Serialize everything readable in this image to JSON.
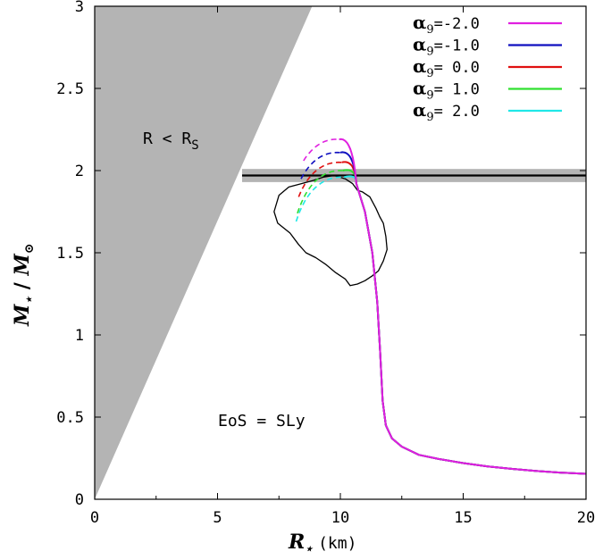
{
  "chart_data": {
    "type": "line",
    "xlabel": "R",
    "xlabel_sub": "⋆",
    "xlabel_unit": "(km)",
    "ylabel": "M",
    "ylabel_sub": "⋆",
    "ylabel_den": "M",
    "ylabel_den_sub": "⊙",
    "xlim": [
      0,
      20
    ],
    "ylim": [
      0,
      3
    ],
    "xticks": [
      "0",
      "5",
      "10",
      "15",
      "20"
    ],
    "yticks": [
      "0",
      "0.5",
      "1",
      "1.5",
      "2",
      "2.5",
      "3"
    ],
    "grid": false,
    "legend_position": "top-right",
    "annotation_region": {
      "label": "R  <  R",
      "label_sub": "S",
      "slope_solar_mass_per_km": 0.339
    },
    "annotation_eos": "EoS = SLy",
    "horizontal_band": {
      "value": 1.97,
      "half_width": 0.04,
      "x_start": 6.0,
      "x_end": 20
    },
    "series": [
      {
        "name": "α",
        "name_sub": "9",
        "value_text": "=-2.0",
        "color": "#e020e0",
        "peak_x": 9.95,
        "peak_y": 2.19,
        "start_x": 8.5,
        "start_y": 2.06
      },
      {
        "name": "α",
        "name_sub": "9",
        "value_text": "=-1.0",
        "color": "#1010c0",
        "peak_x": 10.0,
        "peak_y": 2.11,
        "start_x": 8.4,
        "start_y": 1.95
      },
      {
        "name": "α",
        "name_sub": "9",
        "value_text": "= 0.0",
        "color": "#e01010",
        "peak_x": 10.05,
        "peak_y": 2.05,
        "start_x": 8.3,
        "start_y": 1.84
      },
      {
        "name": "α",
        "name_sub": "9",
        "value_text": "= 1.0",
        "color": "#30e030",
        "peak_x": 10.1,
        "peak_y": 2.0,
        "start_x": 8.25,
        "start_y": 1.74
      },
      {
        "name": "α",
        "name_sub": "9",
        "value_text": "= 2.0",
        "color": "#20e8e8",
        "peak_x": 10.15,
        "peak_y": 1.96,
        "start_x": 8.2,
        "start_y": 1.69
      }
    ],
    "common_branch": [
      [
        10.6,
        1.9
      ],
      [
        11.0,
        1.75
      ],
      [
        11.3,
        1.5
      ],
      [
        11.5,
        1.2
      ],
      [
        11.62,
        0.9
      ],
      [
        11.72,
        0.6
      ],
      [
        11.85,
        0.45
      ],
      [
        12.1,
        0.37
      ],
      [
        12.5,
        0.32
      ],
      [
        13.2,
        0.27
      ],
      [
        14.0,
        0.245
      ],
      [
        15.0,
        0.22
      ],
      [
        16.0,
        0.2
      ],
      [
        17.0,
        0.185
      ],
      [
        18.0,
        0.172
      ],
      [
        19.0,
        0.162
      ],
      [
        20.0,
        0.155
      ]
    ],
    "constraint_contour": [
      [
        9.75,
        1.97
      ],
      [
        10.2,
        1.95
      ],
      [
        10.5,
        1.92
      ],
      [
        10.7,
        1.88
      ],
      [
        10.9,
        1.87
      ],
      [
        11.2,
        1.84
      ],
      [
        11.45,
        1.77
      ],
      [
        11.6,
        1.72
      ],
      [
        11.75,
        1.68
      ],
      [
        11.85,
        1.6
      ],
      [
        11.9,
        1.52
      ],
      [
        11.75,
        1.45
      ],
      [
        11.55,
        1.39
      ],
      [
        11.3,
        1.36
      ],
      [
        11.0,
        1.33
      ],
      [
        10.7,
        1.31
      ],
      [
        10.4,
        1.3
      ],
      [
        10.2,
        1.34
      ],
      [
        9.8,
        1.38
      ],
      [
        9.4,
        1.43
      ],
      [
        9.0,
        1.47
      ],
      [
        8.6,
        1.5
      ],
      [
        8.3,
        1.55
      ],
      [
        7.95,
        1.62
      ],
      [
        7.45,
        1.68
      ],
      [
        7.3,
        1.75
      ],
      [
        7.5,
        1.85
      ],
      [
        7.9,
        1.9
      ],
      [
        8.4,
        1.92
      ],
      [
        8.9,
        1.94
      ],
      [
        9.3,
        1.96
      ],
      [
        9.75,
        1.97
      ]
    ]
  }
}
